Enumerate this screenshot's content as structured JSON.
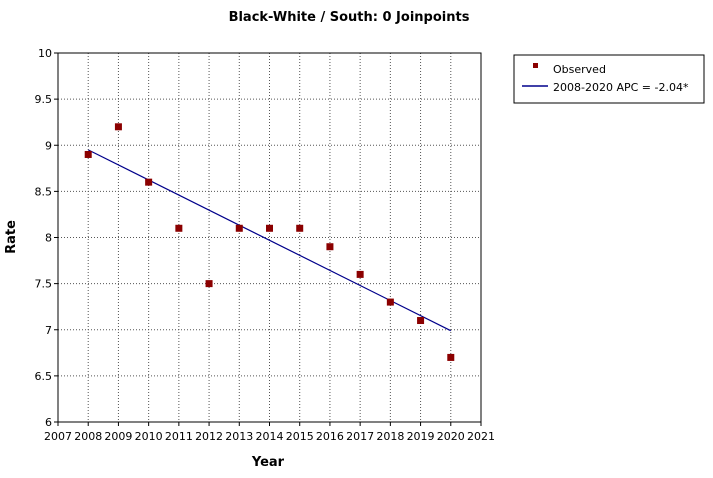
{
  "chart_data": {
    "type": "scatter",
    "title": "Black-White / South: 0 Joinpoints",
    "xlabel": "Year",
    "ylabel": "Rate",
    "xlim": [
      2007,
      2021
    ],
    "ylim": [
      6,
      10
    ],
    "xticks": [
      "2007",
      "2008",
      "2009",
      "2010",
      "2011",
      "2012",
      "2013",
      "2014",
      "2015",
      "2016",
      "2017",
      "2018",
      "2019",
      "2020",
      "2021"
    ],
    "yticks": [
      "6",
      "6.5",
      "7",
      "7.5",
      "8",
      "8.5",
      "9",
      "9.5",
      "10"
    ],
    "grid": true,
    "legend_position": "outside-right",
    "series": [
      {
        "name": "Observed",
        "kind": "markers",
        "color": "#8b0000",
        "x": [
          2008,
          2009,
          2010,
          2011,
          2012,
          2013,
          2014,
          2015,
          2016,
          2017,
          2018,
          2019,
          2020
        ],
        "y": [
          8.9,
          9.2,
          8.6,
          8.1,
          7.5,
          8.1,
          8.1,
          8.1,
          7.9,
          7.6,
          7.3,
          7.1,
          6.7
        ]
      },
      {
        "name": "2008-2020 APC  = -2.04*",
        "kind": "line",
        "color": "#00008b",
        "x": [
          2008,
          2020
        ],
        "y": [
          8.95,
          6.99
        ]
      }
    ]
  }
}
